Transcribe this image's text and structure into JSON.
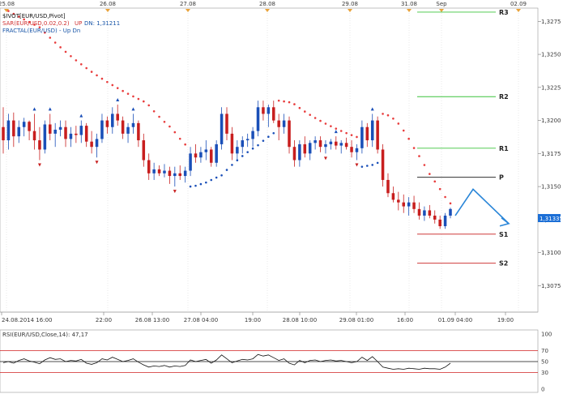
{
  "chart_data": [
    {
      "type": "candlestick",
      "header": {
        "title": "$IVOT[EUR/USD,Pivot]",
        "sar_label": "SAR(EUR/USD,0.02,0.2)",
        "sar_up": "UP",
        "sar_dn": "DN: 1,31211",
        "fractal_label": "FRACTAL(EUR/USD) - Up Dn"
      },
      "top_date_ticks": [
        "25.08",
        "26.08",
        "27.08",
        "28.08",
        "29.08",
        "31.08",
        "Sep",
        "02.09"
      ],
      "bottom_time_ticks": [
        "24.08.2014 16:00",
        "22:00",
        "26.08 13:00",
        "27.08 04:00",
        "19:00",
        "28.08 10:00",
        "29.08 01:00",
        "16:00",
        "01.09 04:00",
        "19:00"
      ],
      "y_ticks": [
        "1,3275",
        "1,3250",
        "1,3225",
        "1,3200",
        "1,3175",
        "1,3150",
        "1,3125",
        "1,3100",
        "1,3075"
      ],
      "ylim": [
        1.3055,
        1.3285
      ],
      "current_price_label": "1,31335",
      "pivot_levels": [
        {
          "label": "R3",
          "value": 1.3282,
          "color": "#3cc43c"
        },
        {
          "label": "R2",
          "value": 1.3218,
          "color": "#3cc43c"
        },
        {
          "label": "R1",
          "value": 1.3179,
          "color": "#3cc43c"
        },
        {
          "label": "P",
          "value": 1.3157,
          "color": "#111111"
        },
        {
          "label": "S1",
          "value": 1.3114,
          "color": "#c81e1e"
        },
        {
          "label": "S2",
          "value": 1.3092,
          "color": "#c81e1e"
        }
      ],
      "candles": [
        [
          1.3195,
          1.321,
          1.3175,
          1.3185
        ],
        [
          1.3185,
          1.3205,
          1.3178,
          1.32
        ],
        [
          1.32,
          1.3206,
          1.318,
          1.3188
        ],
        [
          1.3188,
          1.32,
          1.3183,
          1.3195
        ],
        [
          1.3195,
          1.3202,
          1.3188,
          1.3199
        ],
        [
          1.3199,
          1.32,
          1.3185,
          1.3192
        ],
        [
          1.3192,
          1.3205,
          1.3178,
          1.3185
        ],
        [
          1.3185,
          1.3195,
          1.317,
          1.3178
        ],
        [
          1.3178,
          1.32,
          1.3175,
          1.3197
        ],
        [
          1.3197,
          1.3205,
          1.3185,
          1.319
        ],
        [
          1.319,
          1.3198,
          1.318,
          1.3193
        ],
        [
          1.3193,
          1.32,
          1.3188,
          1.3195
        ],
        [
          1.3195,
          1.32,
          1.318,
          1.3186
        ],
        [
          1.3186,
          1.3195,
          1.318,
          1.319
        ],
        [
          1.319,
          1.3196,
          1.3183,
          1.3189
        ],
        [
          1.3189,
          1.32,
          1.3183,
          1.3196
        ],
        [
          1.3196,
          1.3198,
          1.318,
          1.3184
        ],
        [
          1.3184,
          1.3192,
          1.3175,
          1.318
        ],
        [
          1.318,
          1.319,
          1.3172,
          1.3186
        ],
        [
          1.3186,
          1.3205,
          1.3183,
          1.32
        ],
        [
          1.32,
          1.3203,
          1.319,
          1.3195
        ],
        [
          1.3195,
          1.321,
          1.319,
          1.3205
        ],
        [
          1.3205,
          1.3212,
          1.3196,
          1.32
        ],
        [
          1.32,
          1.3203,
          1.3186,
          1.319
        ],
        [
          1.319,
          1.3198,
          1.3183,
          1.3195
        ],
        [
          1.3195,
          1.3205,
          1.319,
          1.3198
        ],
        [
          1.3198,
          1.32,
          1.318,
          1.3185
        ],
        [
          1.3185,
          1.319,
          1.3165,
          1.317
        ],
        [
          1.317,
          1.3175,
          1.3155,
          1.316
        ],
        [
          1.316,
          1.3168,
          1.3155,
          1.3163
        ],
        [
          1.3163,
          1.3166,
          1.3158,
          1.316
        ],
        [
          1.316,
          1.3167,
          1.3157,
          1.3162
        ],
        [
          1.3162,
          1.3165,
          1.3152,
          1.3158
        ],
        [
          1.3158,
          1.3165,
          1.315,
          1.316
        ],
        [
          1.316,
          1.3166,
          1.3155,
          1.3158
        ],
        [
          1.3158,
          1.3165,
          1.3153,
          1.3162
        ],
        [
          1.3162,
          1.318,
          1.3158,
          1.3175
        ],
        [
          1.3175,
          1.3182,
          1.3168,
          1.3172
        ],
        [
          1.3172,
          1.318,
          1.3168,
          1.3176
        ],
        [
          1.3176,
          1.3185,
          1.317,
          1.3178
        ],
        [
          1.3178,
          1.318,
          1.3165,
          1.3168
        ],
        [
          1.3168,
          1.3185,
          1.3165,
          1.3182
        ],
        [
          1.3182,
          1.321,
          1.3178,
          1.3205
        ],
        [
          1.3205,
          1.321,
          1.3185,
          1.319
        ],
        [
          1.319,
          1.3195,
          1.317,
          1.3175
        ],
        [
          1.3175,
          1.3185,
          1.317,
          1.318
        ],
        [
          1.318,
          1.3188,
          1.3175,
          1.3185
        ],
        [
          1.3185,
          1.319,
          1.318,
          1.3186
        ],
        [
          1.3186,
          1.3195,
          1.318,
          1.3192
        ],
        [
          1.3192,
          1.3215,
          1.3188,
          1.321
        ],
        [
          1.321,
          1.3215,
          1.32,
          1.3205
        ],
        [
          1.3205,
          1.3212,
          1.3195,
          1.321
        ],
        [
          1.321,
          1.3215,
          1.3198,
          1.32
        ],
        [
          1.32,
          1.3205,
          1.3185,
          1.3195
        ],
        [
          1.3195,
          1.3205,
          1.319,
          1.32
        ],
        [
          1.32,
          1.3203,
          1.3175,
          1.318
        ],
        [
          1.318,
          1.3185,
          1.3165,
          1.317
        ],
        [
          1.317,
          1.3185,
          1.3165,
          1.3182
        ],
        [
          1.3182,
          1.3188,
          1.3172,
          1.3175
        ],
        [
          1.3175,
          1.3185,
          1.317,
          1.3183
        ],
        [
          1.3183,
          1.3188,
          1.3178,
          1.3185
        ],
        [
          1.3185,
          1.3188,
          1.3176,
          1.318
        ],
        [
          1.318,
          1.3185,
          1.3175,
          1.3182
        ],
        [
          1.3182,
          1.3186,
          1.3178,
          1.3184
        ],
        [
          1.3184,
          1.3188,
          1.3178,
          1.3181
        ],
        [
          1.3181,
          1.3185,
          1.3175,
          1.3183
        ],
        [
          1.3183,
          1.3187,
          1.3178,
          1.318
        ],
        [
          1.318,
          1.3185,
          1.3172,
          1.3176
        ],
        [
          1.3176,
          1.3182,
          1.317,
          1.3179
        ],
        [
          1.3179,
          1.32,
          1.3175,
          1.3195
        ],
        [
          1.3195,
          1.3198,
          1.318,
          1.3185
        ],
        [
          1.3185,
          1.3205,
          1.318,
          1.32
        ],
        [
          1.32,
          1.3203,
          1.3175,
          1.3178
        ],
        [
          1.3178,
          1.3182,
          1.315,
          1.3155
        ],
        [
          1.3155,
          1.316,
          1.3142,
          1.3145
        ],
        [
          1.3145,
          1.315,
          1.3138,
          1.314
        ],
        [
          1.314,
          1.3146,
          1.3132,
          1.3138
        ],
        [
          1.3138,
          1.3144,
          1.313,
          1.3135
        ],
        [
          1.3135,
          1.3142,
          1.3128,
          1.3138
        ],
        [
          1.3138,
          1.3143,
          1.313,
          1.3133
        ],
        [
          1.3133,
          1.3138,
          1.3125,
          1.3128
        ],
        [
          1.3128,
          1.3135,
          1.3124,
          1.3132
        ],
        [
          1.3132,
          1.3136,
          1.3126,
          1.3128
        ],
        [
          1.3128,
          1.3132,
          1.3122,
          1.3125
        ],
        [
          1.3125,
          1.3128,
          1.3118,
          1.312
        ],
        [
          1.312,
          1.313,
          1.3118,
          1.3128
        ],
        [
          1.3128,
          1.3134,
          1.3126,
          1.3133
        ]
      ],
      "forecast_arrow": [
        [
          1.3128,
          1.3148
        ],
        [
          1.3132,
          1.3122
        ]
      ]
    },
    {
      "type": "line",
      "title": "RSI(EUR/USD,Close,14): 47,17",
      "ylim": [
        0,
        100
      ],
      "levels": [
        {
          "value": 70,
          "color": "#d02020"
        },
        {
          "value": 50,
          "color": "#111111"
        },
        {
          "value": 30,
          "color": "#d02020"
        }
      ],
      "y_ticks": [
        "100",
        "70",
        "50",
        "30",
        "0"
      ],
      "values": [
        48,
        50,
        47,
        52,
        55,
        51,
        49,
        46,
        53,
        57,
        54,
        55,
        50,
        52,
        51,
        54,
        47,
        45,
        48,
        55,
        53,
        58,
        54,
        50,
        52,
        55,
        49,
        44,
        40,
        42,
        41,
        43,
        40,
        42,
        41,
        43,
        53,
        50,
        52,
        54,
        47,
        53,
        62,
        55,
        48,
        51,
        54,
        53,
        55,
        63,
        60,
        62,
        57,
        52,
        55,
        47,
        44,
        52,
        48,
        52,
        53,
        50,
        52,
        53,
        51,
        52,
        50,
        48,
        50,
        58,
        52,
        59,
        50,
        40,
        38,
        36,
        37,
        36,
        38,
        37,
        36,
        38,
        37,
        37,
        36,
        40,
        47
      ]
    }
  ]
}
